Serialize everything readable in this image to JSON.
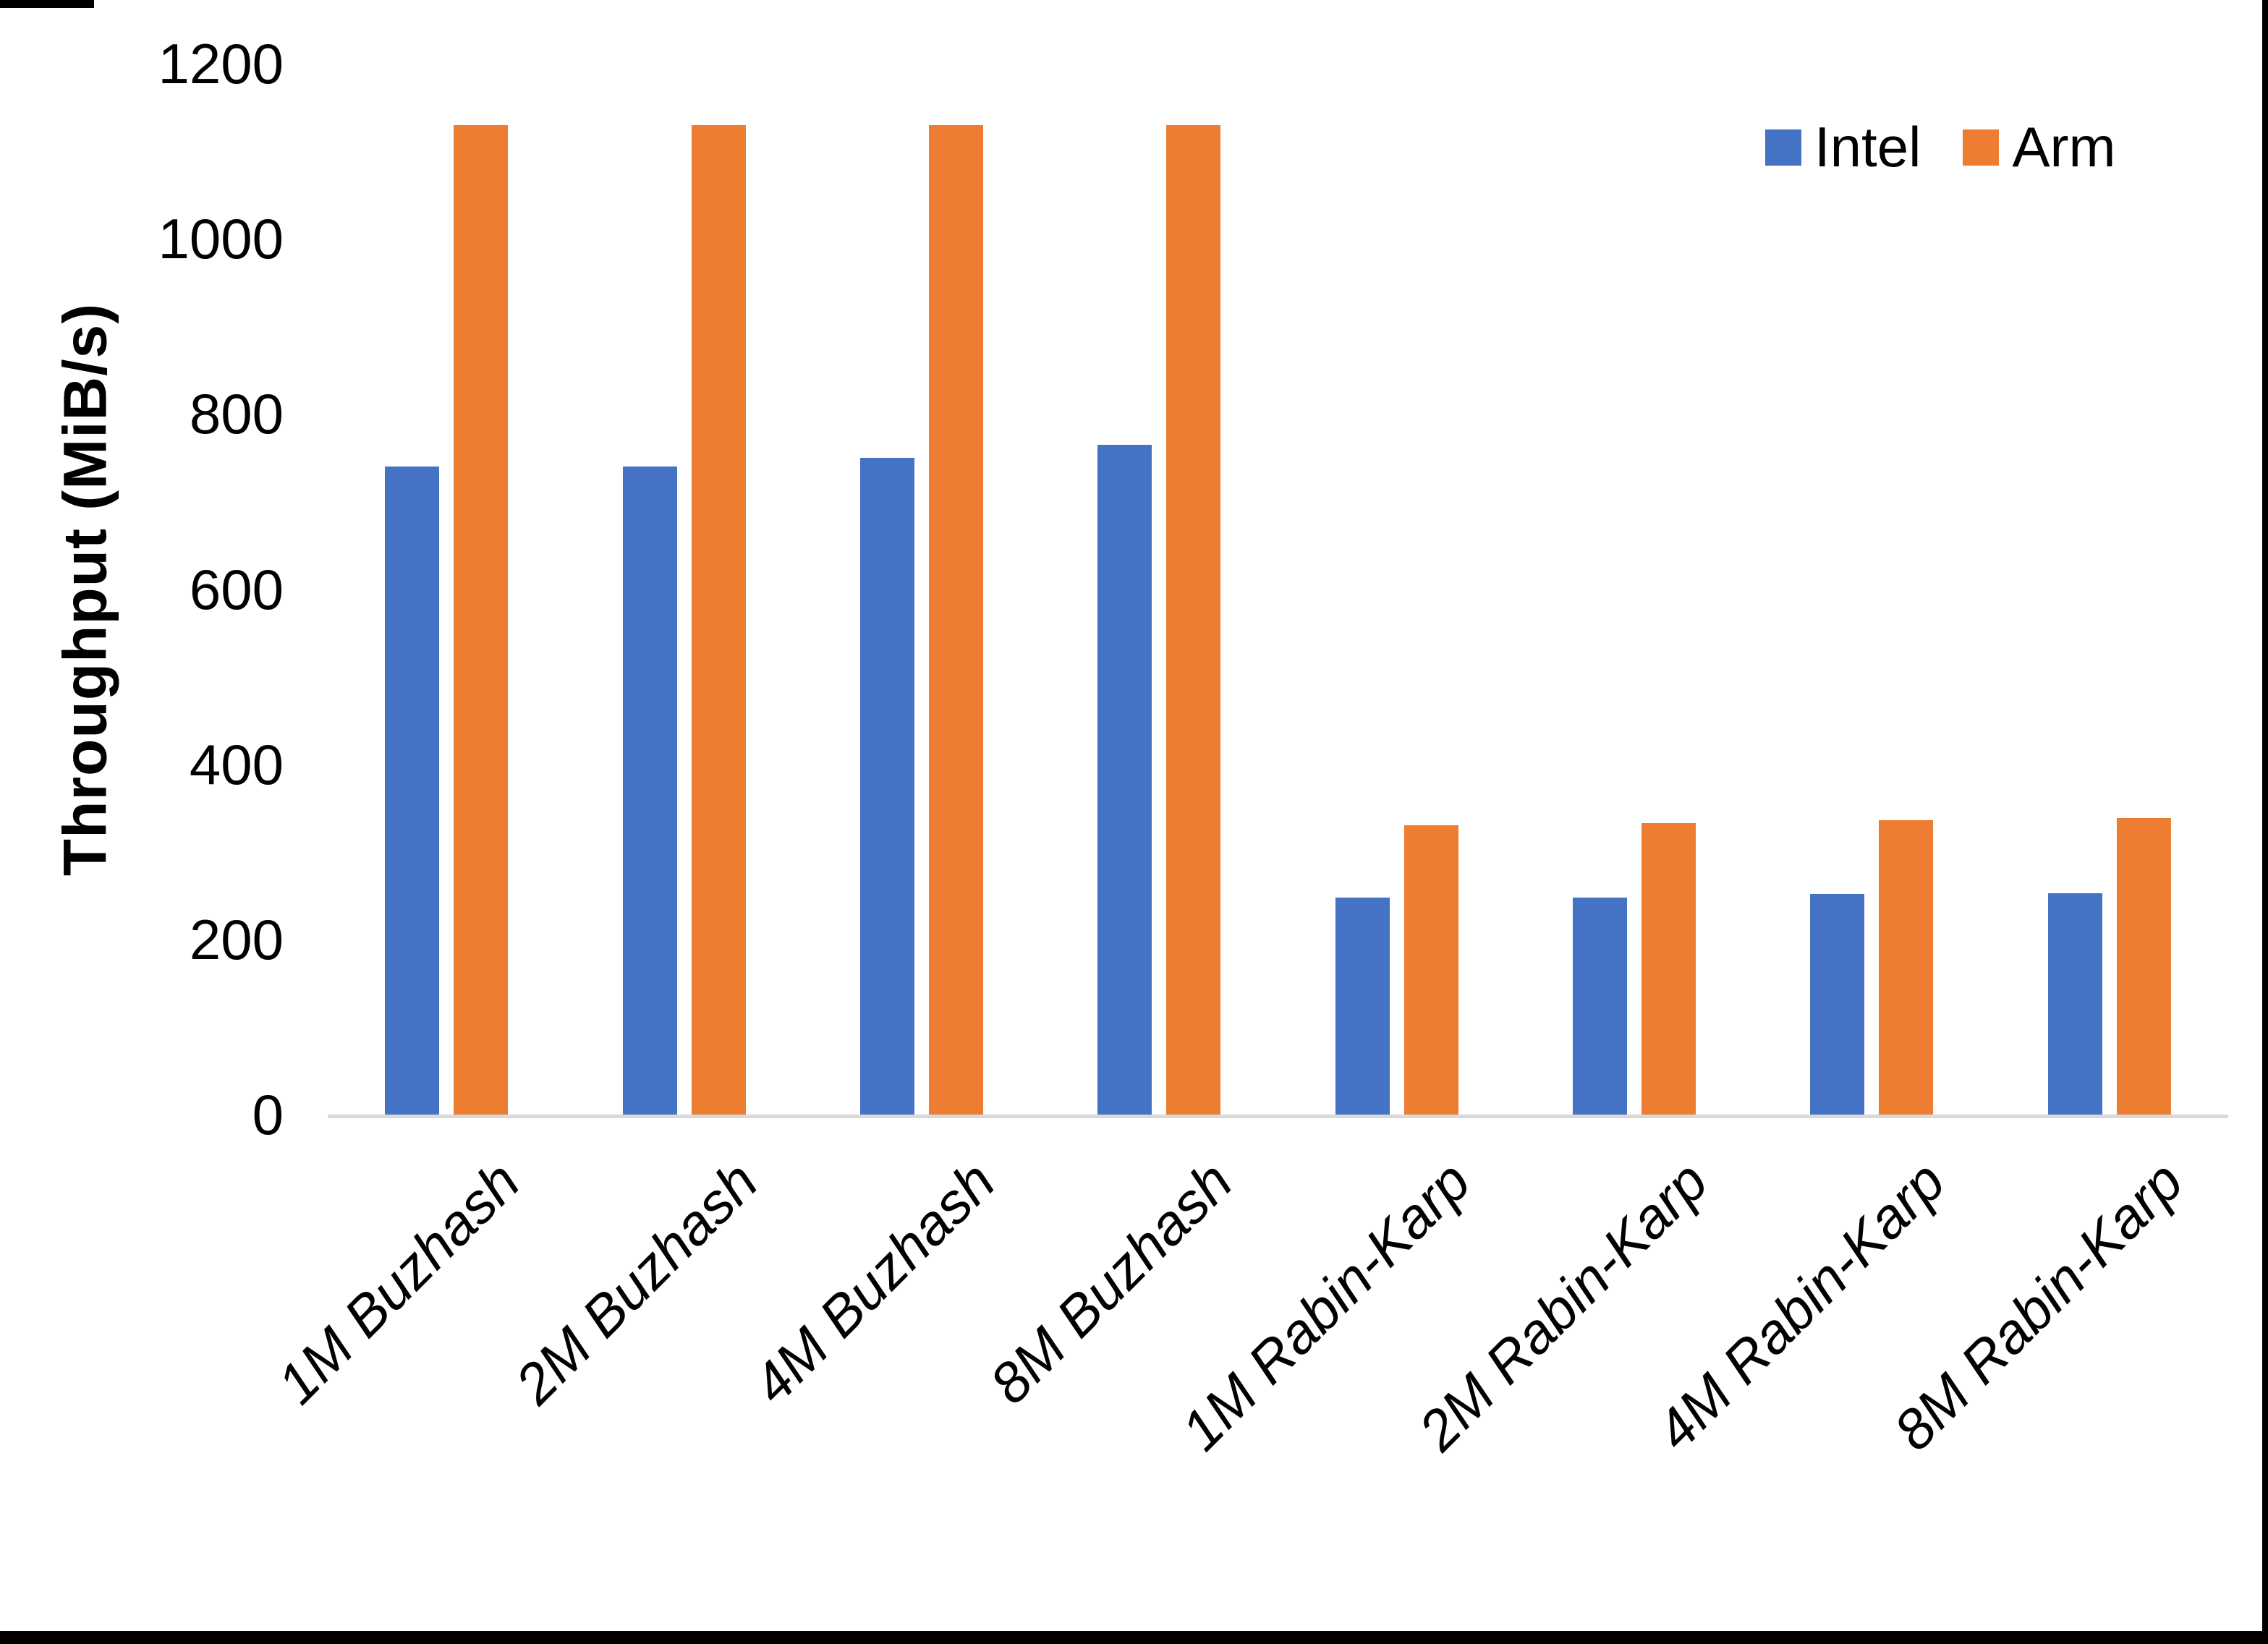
{
  "chart_data": {
    "type": "bar",
    "title": "",
    "xlabel": "",
    "ylabel": "Throughput (MiB/s)",
    "ylim": [
      0,
      1200
    ],
    "y_ticks": [
      1200,
      1000,
      800,
      600,
      400,
      200,
      0
    ],
    "grid": false,
    "legend_position": "top-right",
    "categories": [
      "1M Buzhash",
      "2M Buzhash",
      "4M Buzhash",
      "8M Buzhash",
      "1M Rabin-Karp",
      "2M Rabin-Karp",
      "4M Rabin-Karp",
      "8M Rabin-Karp"
    ],
    "series": [
      {
        "name": "Intel",
        "color": "#4472C4",
        "values": [
          740,
          740,
          750,
          765,
          248,
          248,
          252,
          253
        ]
      },
      {
        "name": "Arm",
        "color": "#ED7D31",
        "values": [
          1130,
          1130,
          1130,
          1130,
          330,
          333,
          336,
          339
        ]
      }
    ]
  },
  "colors": {
    "axis_line": "#D9D9D9",
    "text": "#000000",
    "edge_border": "#000000"
  }
}
